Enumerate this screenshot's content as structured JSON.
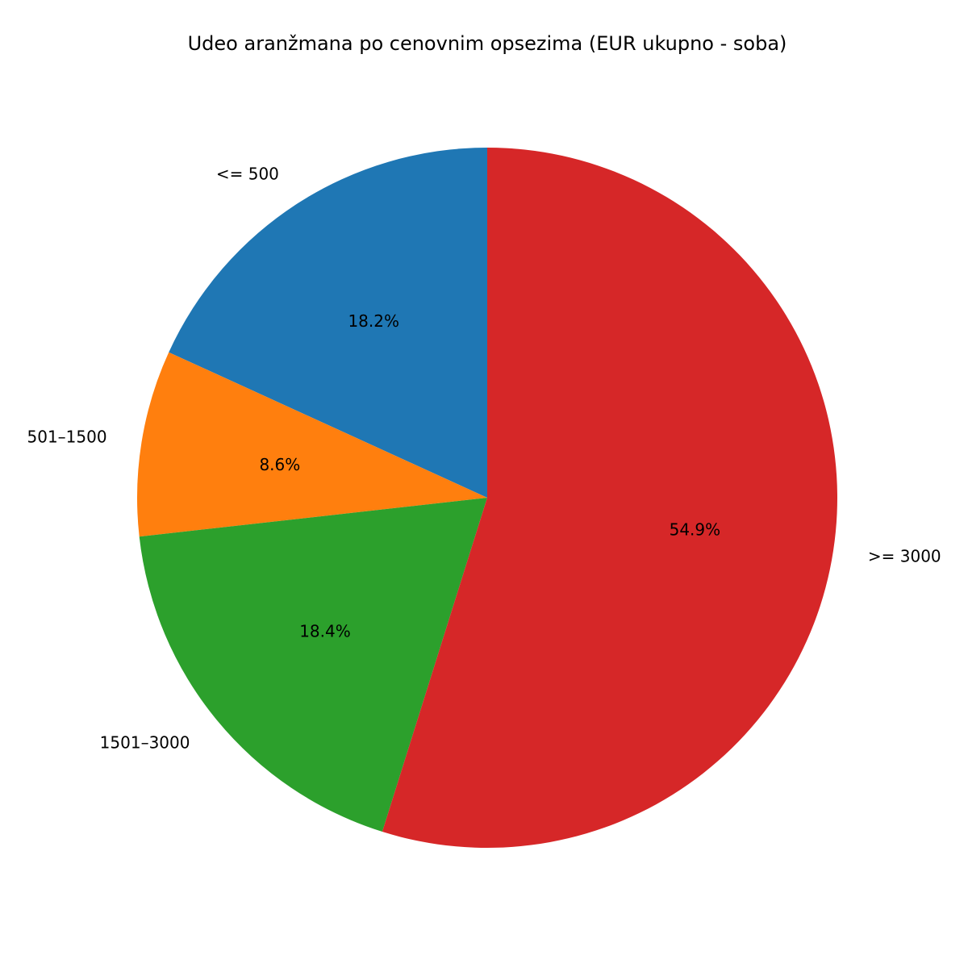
{
  "chart_data": {
    "type": "pie",
    "title": "Udeo aranžmana po cenovnim opsezima (EUR ukupno - soba)",
    "slices": [
      {
        "label": "<= 500",
        "percent": 18.2,
        "pct_text": "18.2%",
        "color": "#1f77b4"
      },
      {
        "label": "501–1500",
        "percent": 8.6,
        "pct_text": "8.6%",
        "color": "#ff7f0e"
      },
      {
        "label": "1501–3000",
        "percent": 18.4,
        "pct_text": "18.4%",
        "color": "#2ca02c"
      },
      {
        "label": ">= 3000",
        "percent": 54.9,
        "pct_text": "54.9%",
        "color": "#d62728"
      }
    ],
    "start_angle_deg": 90,
    "direction": "counterclockwise"
  }
}
